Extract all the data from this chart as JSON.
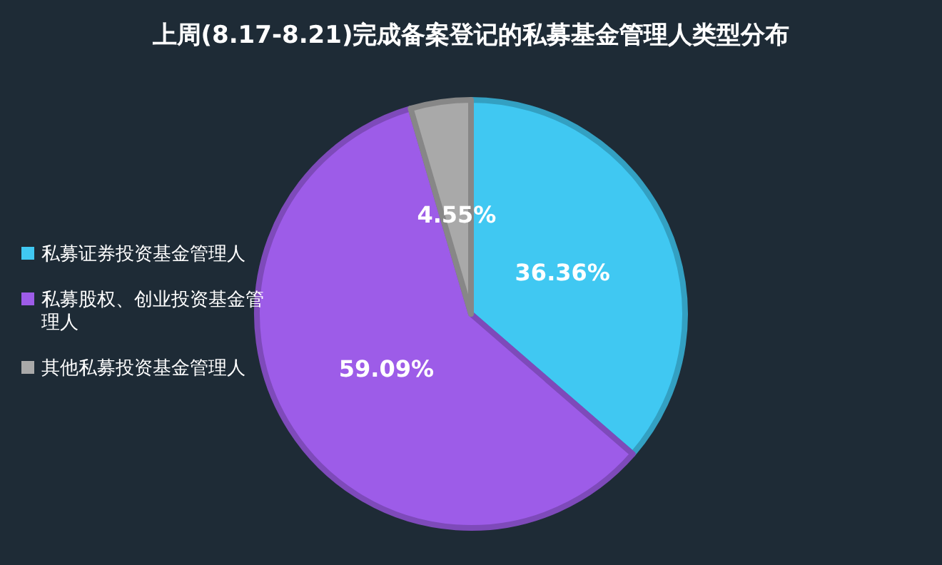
{
  "chart_data": {
    "type": "pie",
    "title": "上周(8.17-8.21)完成备案登记的私募基金管理人类型分布",
    "categories": [
      "私募证券投资基金管理人",
      "私募股权、创业投资基金管理人",
      "其他私募投资基金管理人"
    ],
    "values": [
      36.36,
      59.09,
      4.55
    ],
    "colors": [
      "#40c8f2",
      "#9d5ce8",
      "#a9a9a9"
    ],
    "value_labels": [
      "36.36%",
      "59.09%",
      "4.55%"
    ],
    "legend": "left"
  }
}
